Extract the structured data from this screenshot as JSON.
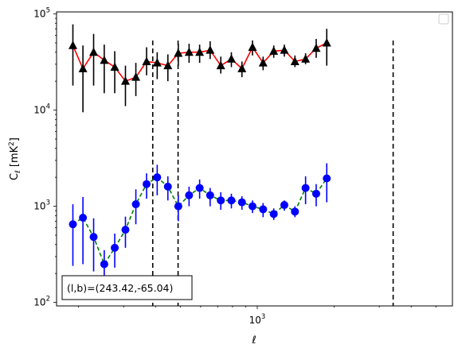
{
  "chart_data": {
    "type": "scatter",
    "xlabel": "ℓ",
    "ylabel": "C_ℓ  [mK²]",
    "xscale": "log",
    "yscale": "log",
    "xlim": [
      164,
      5800
    ],
    "ylim": [
      92,
      105000
    ],
    "xticks": [
      {
        "value": 1000,
        "base": "10",
        "exp": "3"
      }
    ],
    "yticks": [
      {
        "value": 100,
        "base": "10",
        "exp": "2"
      },
      {
        "value": 1000,
        "base": "10",
        "exp": "3"
      },
      {
        "value": 10000,
        "base": "10",
        "exp": "4"
      },
      {
        "value": 100000,
        "base": "10",
        "exp": "5"
      }
    ],
    "vlines": [
      390,
      490,
      3400
    ],
    "annotation": "(l,b)=(243.42,-65.04)",
    "legend": {
      "position": "top-right",
      "entries": []
    },
    "series": [
      {
        "color": "#ff0000",
        "marker": "triangle",
        "marker_color": "#000000",
        "line_style": "solid",
        "points": [
          {
            "x": 190,
            "y": 47000,
            "lo": 18000,
            "hi": 78000
          },
          {
            "x": 208,
            "y": 27000,
            "lo": 9500,
            "hi": 47000
          },
          {
            "x": 229,
            "y": 40000,
            "lo": 18000,
            "hi": 62000
          },
          {
            "x": 252,
            "y": 33000,
            "lo": 15000,
            "hi": 48000
          },
          {
            "x": 277,
            "y": 28000,
            "lo": 15000,
            "hi": 41000
          },
          {
            "x": 305,
            "y": 20000,
            "lo": 11000,
            "hi": 29000
          },
          {
            "x": 335,
            "y": 22000,
            "lo": 14000,
            "hi": 31000
          },
          {
            "x": 369,
            "y": 32000,
            "lo": 23000,
            "hi": 45000
          },
          {
            "x": 406,
            "y": 31000,
            "lo": 21000,
            "hi": 40000
          },
          {
            "x": 447,
            "y": 29000,
            "lo": 20000,
            "hi": 38000
          },
          {
            "x": 491,
            "y": 39000,
            "lo": 29000,
            "hi": 49000
          },
          {
            "x": 541,
            "y": 40000,
            "lo": 31000,
            "hi": 49000
          },
          {
            "x": 595,
            "y": 40000,
            "lo": 31000,
            "hi": 48000
          },
          {
            "x": 654,
            "y": 42000,
            "lo": 34000,
            "hi": 52000
          },
          {
            "x": 720,
            "y": 29000,
            "lo": 24000,
            "hi": 36000
          },
          {
            "x": 792,
            "y": 34000,
            "lo": 28000,
            "hi": 40000
          },
          {
            "x": 871,
            "y": 27000,
            "lo": 22000,
            "hi": 32000
          },
          {
            "x": 958,
            "y": 45000,
            "lo": 37000,
            "hi": 53000
          },
          {
            "x": 1054,
            "y": 31000,
            "lo": 26000,
            "hi": 36000
          },
          {
            "x": 1160,
            "y": 41000,
            "lo": 35000,
            "hi": 47000
          },
          {
            "x": 1276,
            "y": 42000,
            "lo": 36000,
            "hi": 48000
          },
          {
            "x": 1404,
            "y": 32000,
            "lo": 28000,
            "hi": 37000
          },
          {
            "x": 1545,
            "y": 34000,
            "lo": 30000,
            "hi": 39000
          },
          {
            "x": 1700,
            "y": 44000,
            "lo": 35000,
            "hi": 55000
          },
          {
            "x": 1870,
            "y": 50000,
            "lo": 29000,
            "hi": 70000
          }
        ]
      },
      {
        "color": "#008000",
        "marker": "circle",
        "marker_color": "#0000ff",
        "line_style": "dashed",
        "points": [
          {
            "x": 190,
            "y": 650,
            "lo": 240,
            "hi": 1050
          },
          {
            "x": 208,
            "y": 760,
            "lo": 250,
            "hi": 1250
          },
          {
            "x": 229,
            "y": 480,
            "lo": 210,
            "hi": 750
          },
          {
            "x": 252,
            "y": 250,
            "lo": 150,
            "hi": 350
          },
          {
            "x": 277,
            "y": 370,
            "lo": 230,
            "hi": 520
          },
          {
            "x": 305,
            "y": 570,
            "lo": 370,
            "hi": 780
          },
          {
            "x": 335,
            "y": 1050,
            "lo": 650,
            "hi": 1500
          },
          {
            "x": 369,
            "y": 1700,
            "lo": 1200,
            "hi": 2200
          },
          {
            "x": 406,
            "y": 2000,
            "lo": 1300,
            "hi": 2700
          },
          {
            "x": 447,
            "y": 1600,
            "lo": 1150,
            "hi": 2050
          },
          {
            "x": 491,
            "y": 1000,
            "lo": 700,
            "hi": 1300
          },
          {
            "x": 541,
            "y": 1300,
            "lo": 1000,
            "hi": 1600
          },
          {
            "x": 595,
            "y": 1550,
            "lo": 1200,
            "hi": 1900
          },
          {
            "x": 654,
            "y": 1300,
            "lo": 1000,
            "hi": 1550
          },
          {
            "x": 720,
            "y": 1150,
            "lo": 920,
            "hi": 1400
          },
          {
            "x": 792,
            "y": 1150,
            "lo": 950,
            "hi": 1350
          },
          {
            "x": 871,
            "y": 1100,
            "lo": 920,
            "hi": 1270
          },
          {
            "x": 958,
            "y": 1000,
            "lo": 850,
            "hi": 1150
          },
          {
            "x": 1054,
            "y": 930,
            "lo": 770,
            "hi": 1080
          },
          {
            "x": 1160,
            "y": 830,
            "lo": 720,
            "hi": 950
          },
          {
            "x": 1276,
            "y": 1030,
            "lo": 900,
            "hi": 1150
          },
          {
            "x": 1404,
            "y": 880,
            "lo": 770,
            "hi": 1000
          },
          {
            "x": 1545,
            "y": 1550,
            "lo": 1050,
            "hi": 2050
          },
          {
            "x": 1700,
            "y": 1350,
            "lo": 1000,
            "hi": 1700
          },
          {
            "x": 1870,
            "y": 1950,
            "lo": 1100,
            "hi": 2800
          }
        ]
      }
    ]
  }
}
